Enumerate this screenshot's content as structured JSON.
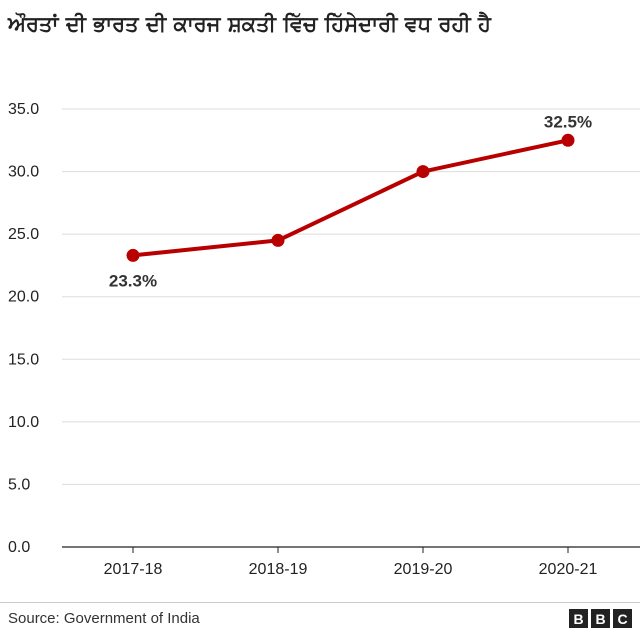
{
  "title": "ਔਰਤਾਂ ਦੀ ਭਾਰਤ ਦੀ ਕਾਰਜ ਸ਼ਕਤੀ ਵਿੱਚ ਹਿੱਸੇਦਾਰੀ ਵਧ ਰਹੀ ਹੈ",
  "source": "Source: Government of India",
  "logo": [
    "B",
    "B",
    "C"
  ],
  "colors": {
    "line": "#b80000",
    "grid": "#dddddd",
    "axis": "#222222"
  },
  "chart_data": {
    "type": "line",
    "title": "ਔਰਤਾਂ ਦੀ ਭਾਰਤ ਦੀ ਕਾਰਜ ਸ਼ਕਤੀ ਵਿੱਚ ਹਿੱਸੇਦਾਰੀ ਵਧ ਰਹੀ ਹੈ",
    "categories": [
      "2017-18",
      "2018-19",
      "2019-20",
      "2020-21"
    ],
    "values": [
      23.3,
      24.5,
      30.0,
      32.5
    ],
    "ylim": [
      0,
      35
    ],
    "yticks": [
      "0.0",
      "5.0",
      "10.0",
      "15.0",
      "20.0",
      "25.0",
      "30.0",
      "35.0"
    ],
    "grid": true,
    "xlabel": "",
    "ylabel": "",
    "annotations": [
      {
        "index": 0,
        "text": "23.3%",
        "position": "below"
      },
      {
        "index": 3,
        "text": "32.5%",
        "position": "above"
      }
    ]
  }
}
